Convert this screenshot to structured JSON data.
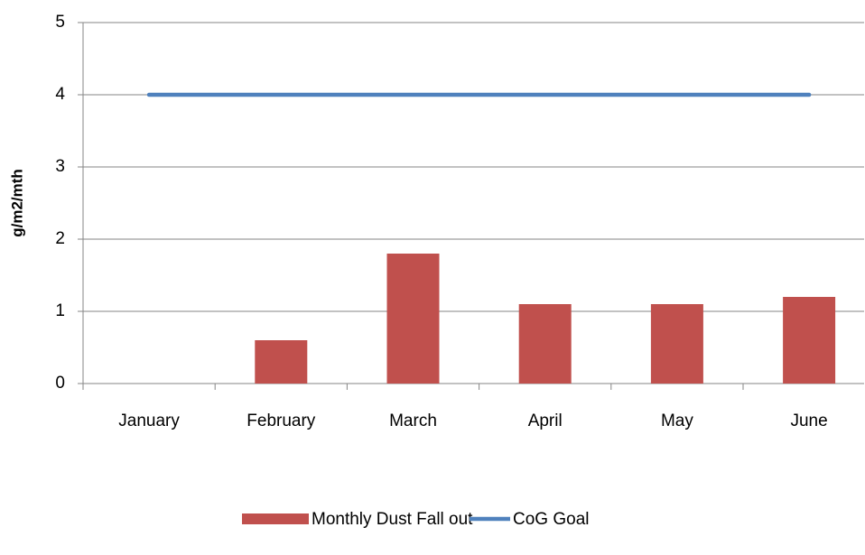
{
  "chart_data": {
    "type": "bar",
    "y_label": "g/m2/mth",
    "categories": [
      "January",
      "February",
      "March",
      "April",
      "May",
      "June"
    ],
    "series": [
      {
        "name": "Monthly Dust Fall out",
        "type": "bar",
        "color": "#c0504d",
        "values": [
          null,
          0.6,
          1.8,
          1.1,
          1.1,
          1.2
        ]
      },
      {
        "name": "CoG Goal",
        "type": "line",
        "color": "#4f81bd",
        "values": [
          4,
          4,
          4,
          4,
          4,
          4
        ]
      }
    ],
    "ylim": [
      0,
      5
    ],
    "yticks": [
      0,
      1,
      2,
      3,
      4,
      5
    ],
    "grid": true,
    "legend": "bottom"
  }
}
